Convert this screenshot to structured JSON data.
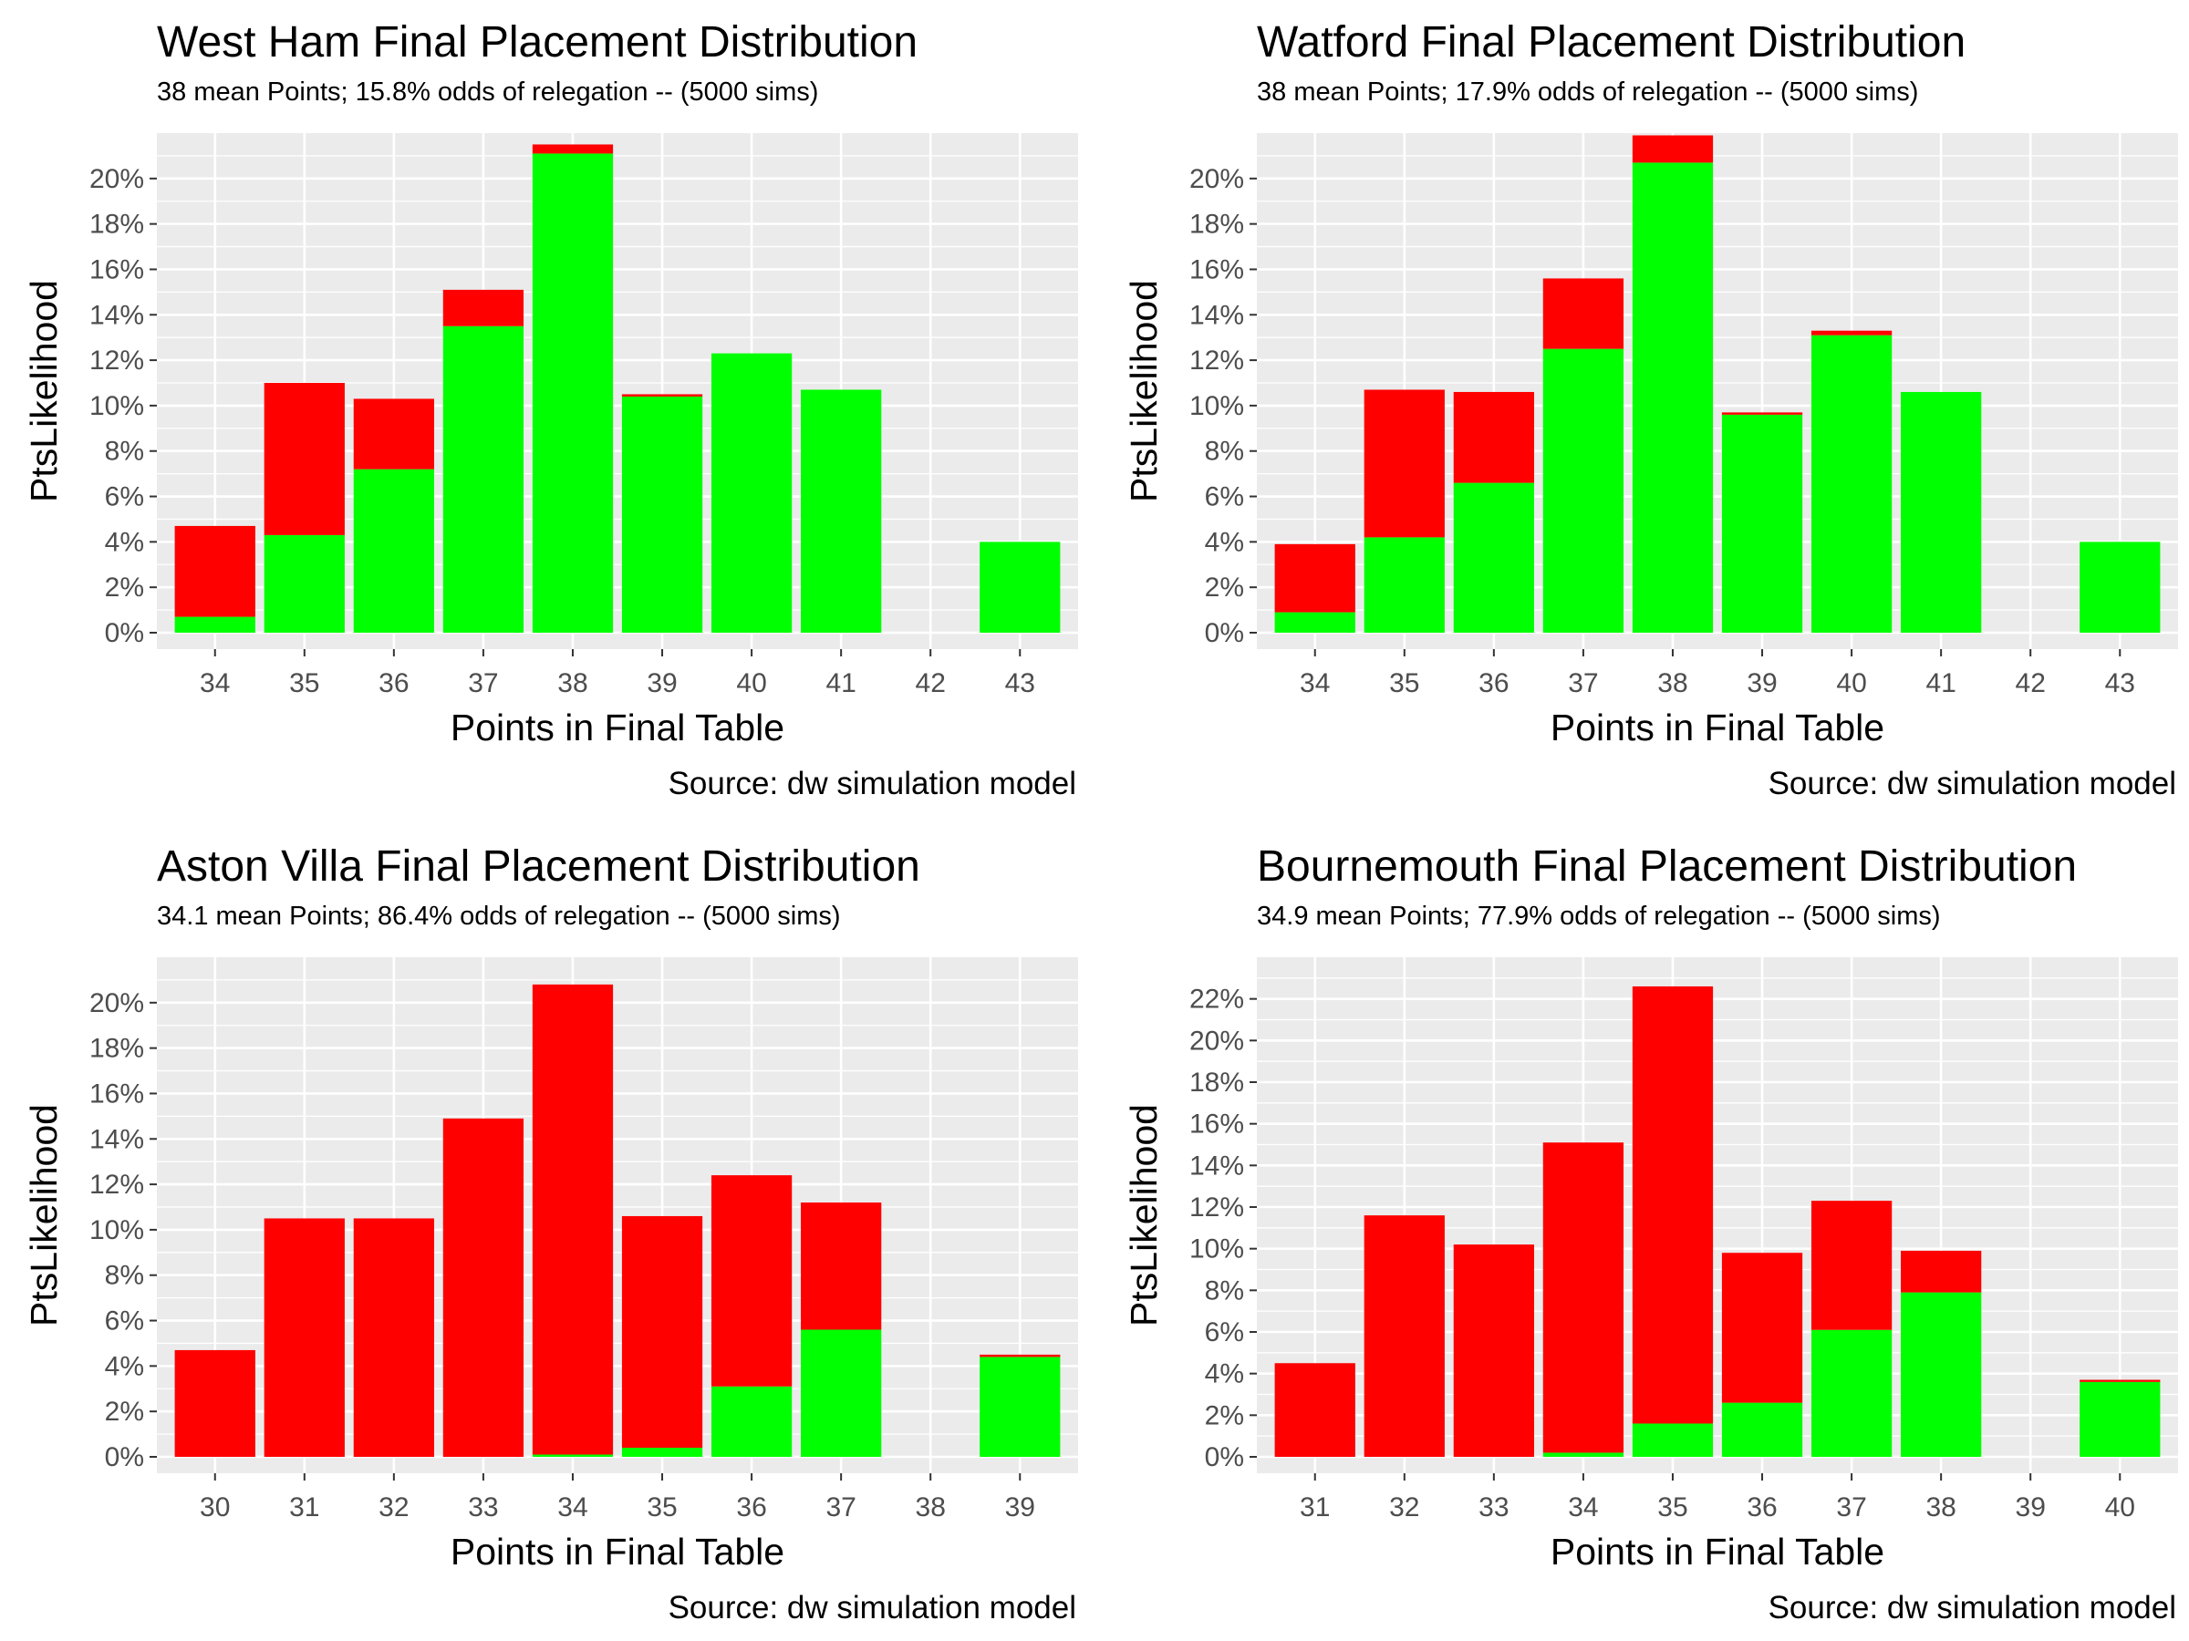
{
  "colors": {
    "relegated": "#ff0000",
    "safe": "#00ff00",
    "panel_background": "#ebebeb",
    "grid": "#ffffff"
  },
  "chart_data": [
    {
      "type": "bar",
      "stacked": true,
      "title": "West Ham Final Placement Distribution",
      "subtitle": "38 mean Points; 15.8% odds of relegation -- (5000 sims)",
      "caption": "Source:  dw simulation model",
      "xlabel": "Points in Final Table",
      "ylabel": "PtsLikelihood",
      "categories": [
        "34",
        "35",
        "36",
        "37",
        "38",
        "39",
        "40",
        "41",
        "42",
        "43"
      ],
      "y_ticks": [
        "0%",
        "2%",
        "4%",
        "6%",
        "8%",
        "10%",
        "12%",
        "14%",
        "16%",
        "18%",
        "20%"
      ],
      "ylim": [
        0,
        0.22
      ],
      "grid": true,
      "legend": "none",
      "series": [
        {
          "color": "#00ff00",
          "values": [
            0.007,
            0.043,
            0.072,
            0.135,
            0.211,
            0.104,
            0.123,
            0.107,
            0,
            0.04
          ]
        },
        {
          "color": "#ff0000",
          "values": [
            0.04,
            0.067,
            0.031,
            0.016,
            0.004,
            0.001,
            0,
            0,
            0,
            0
          ]
        }
      ]
    },
    {
      "type": "bar",
      "stacked": true,
      "title": "Watford Final Placement Distribution",
      "subtitle": "38 mean Points; 17.9% odds of relegation -- (5000 sims)",
      "caption": "Source:  dw simulation model",
      "xlabel": "Points in Final Table",
      "ylabel": "PtsLikelihood",
      "categories": [
        "34",
        "35",
        "36",
        "37",
        "38",
        "39",
        "40",
        "41",
        "42",
        "43"
      ],
      "y_ticks": [
        "0%",
        "2%",
        "4%",
        "6%",
        "8%",
        "10%",
        "12%",
        "14%",
        "16%",
        "18%",
        "20%"
      ],
      "ylim": [
        0,
        0.22
      ],
      "grid": true,
      "legend": "none",
      "series": [
        {
          "color": "#00ff00",
          "values": [
            0.009,
            0.042,
            0.066,
            0.125,
            0.207,
            0.096,
            0.131,
            0.106,
            0,
            0.04
          ]
        },
        {
          "color": "#ff0000",
          "values": [
            0.03,
            0.065,
            0.04,
            0.031,
            0.012,
            0.001,
            0.002,
            0,
            0,
            0
          ]
        }
      ]
    },
    {
      "type": "bar",
      "stacked": true,
      "title": "Aston Villa Final Placement Distribution",
      "subtitle": "34.1 mean Points; 86.4% odds of relegation -- (5000 sims)",
      "caption": "Source:  dw simulation model",
      "xlabel": "Points in Final Table",
      "ylabel": "PtsLikelihood",
      "categories": [
        "30",
        "31",
        "32",
        "33",
        "34",
        "35",
        "36",
        "37",
        "38",
        "39"
      ],
      "y_ticks": [
        "0%",
        "2%",
        "4%",
        "6%",
        "8%",
        "10%",
        "12%",
        "14%",
        "16%",
        "18%",
        "20%"
      ],
      "ylim": [
        0,
        0.22
      ],
      "grid": true,
      "legend": "none",
      "series": [
        {
          "color": "#00ff00",
          "values": [
            0,
            0,
            0,
            0,
            0.001,
            0.004,
            0.031,
            0.056,
            0,
            0.044
          ]
        },
        {
          "color": "#ff0000",
          "values": [
            0.047,
            0.105,
            0.105,
            0.149,
            0.207,
            0.102,
            0.093,
            0.056,
            0,
            0.001
          ]
        }
      ]
    },
    {
      "type": "bar",
      "stacked": true,
      "title": "Bournemouth Final Placement Distribution",
      "subtitle": "34.9 mean Points; 77.9% odds of relegation -- (5000 sims)",
      "caption": "Source:  dw simulation model",
      "xlabel": "Points in Final Table",
      "ylabel": "PtsLikelihood",
      "categories": [
        "31",
        "32",
        "33",
        "34",
        "35",
        "36",
        "37",
        "38",
        "39",
        "40"
      ],
      "y_ticks": [
        "0%",
        "2%",
        "4%",
        "6%",
        "8%",
        "10%",
        "12%",
        "14%",
        "16%",
        "18%",
        "20%",
        "22%"
      ],
      "ylim": [
        0,
        0.24
      ],
      "grid": true,
      "legend": "none",
      "series": [
        {
          "color": "#00ff00",
          "values": [
            0,
            0,
            0,
            0.002,
            0.016,
            0.026,
            0.061,
            0.079,
            0,
            0.036
          ]
        },
        {
          "color": "#ff0000",
          "values": [
            0.045,
            0.116,
            0.102,
            0.149,
            0.21,
            0.072,
            0.062,
            0.02,
            0,
            0.001
          ]
        }
      ]
    }
  ]
}
